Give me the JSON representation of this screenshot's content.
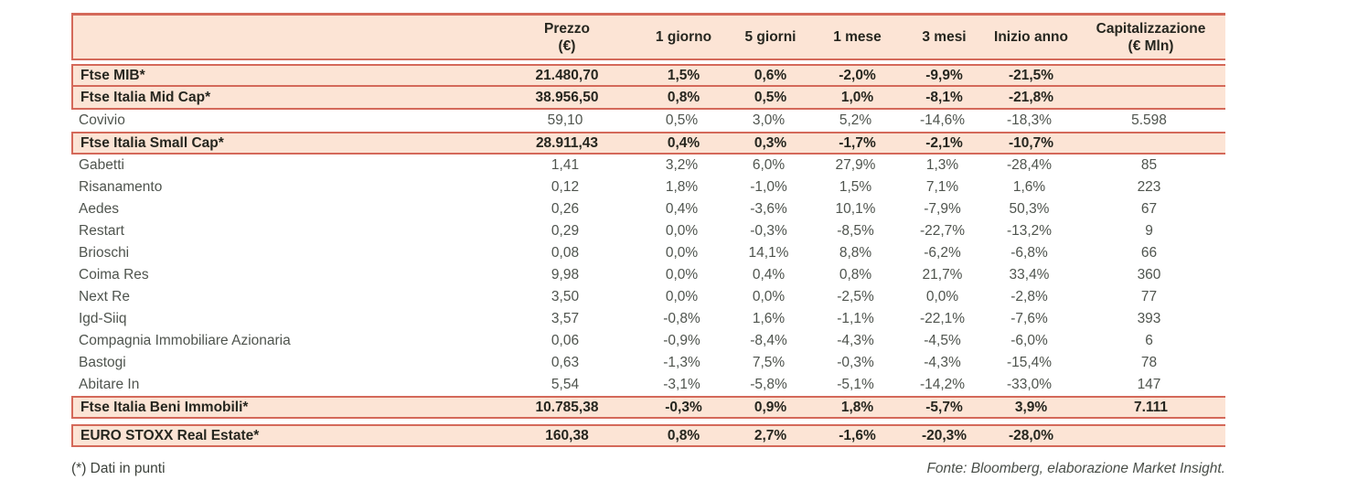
{
  "colors": {
    "accent_border": "#d4695a",
    "highlight_row_bg": "#fce4d5"
  },
  "table": {
    "columns": [
      {
        "key": "name",
        "line1": "",
        "line2": ""
      },
      {
        "key": "prezzo",
        "line1": "Prezzo",
        "line2": "(€)"
      },
      {
        "key": "1-giorno",
        "line1": "1 giorno",
        "line2": ""
      },
      {
        "key": "5-giorni",
        "line1": "5 giorni",
        "line2": ""
      },
      {
        "key": "1-mese",
        "line1": "1 mese",
        "line2": ""
      },
      {
        "key": "3-mesi",
        "line1": "3 mesi",
        "line2": ""
      },
      {
        "key": "inizio-anno",
        "line1": "Inizio anno",
        "line2": ""
      },
      {
        "key": "capitalizzazione",
        "line1": "Capitalizzazione",
        "line2": "(€ Mln)"
      }
    ],
    "rows": [
      {
        "name": "Ftse MIB*",
        "highlight": true,
        "gap_after": false,
        "values": [
          "21.480,70",
          "1,5%",
          "0,6%",
          "-2,0%",
          "-9,9%",
          "-21,5%",
          ""
        ]
      },
      {
        "name": "Ftse Italia Mid Cap*",
        "highlight": true,
        "gap_after": false,
        "values": [
          "38.956,50",
          "0,8%",
          "0,5%",
          "1,0%",
          "-8,1%",
          "-21,8%",
          ""
        ]
      },
      {
        "name": "Covivio",
        "highlight": false,
        "gap_after": false,
        "values": [
          "59,10",
          "0,5%",
          "3,0%",
          "5,2%",
          "-14,6%",
          "-18,3%",
          "5.598"
        ]
      },
      {
        "name": "Ftse Italia Small Cap*",
        "highlight": true,
        "gap_after": false,
        "values": [
          "28.911,43",
          "0,4%",
          "0,3%",
          "-1,7%",
          "-2,1%",
          "-10,7%",
          ""
        ]
      },
      {
        "name": "Gabetti",
        "highlight": false,
        "gap_after": false,
        "values": [
          "1,41",
          "3,2%",
          "6,0%",
          "27,9%",
          "1,3%",
          "-28,4%",
          "85"
        ]
      },
      {
        "name": "Risanamento",
        "highlight": false,
        "gap_after": false,
        "values": [
          "0,12",
          "1,8%",
          "-1,0%",
          "1,5%",
          "7,1%",
          "1,6%",
          "223"
        ]
      },
      {
        "name": "Aedes",
        "highlight": false,
        "gap_after": false,
        "values": [
          "0,26",
          "0,4%",
          "-3,6%",
          "10,1%",
          "-7,9%",
          "50,3%",
          "67"
        ]
      },
      {
        "name": "Restart",
        "highlight": false,
        "gap_after": false,
        "values": [
          "0,29",
          "0,0%",
          "-0,3%",
          "-8,5%",
          "-22,7%",
          "-13,2%",
          "9"
        ]
      },
      {
        "name": "Brioschi",
        "highlight": false,
        "gap_after": false,
        "values": [
          "0,08",
          "0,0%",
          "14,1%",
          "8,8%",
          "-6,2%",
          "-6,8%",
          "66"
        ]
      },
      {
        "name": "Coima Res",
        "highlight": false,
        "gap_after": false,
        "values": [
          "9,98",
          "0,0%",
          "0,4%",
          "0,8%",
          "21,7%",
          "33,4%",
          "360"
        ]
      },
      {
        "name": "Next Re",
        "highlight": false,
        "gap_after": false,
        "values": [
          "3,50",
          "0,0%",
          "0,0%",
          "-2,5%",
          "0,0%",
          "-2,8%",
          "77"
        ]
      },
      {
        "name": "Igd-Siiq",
        "highlight": false,
        "gap_after": false,
        "values": [
          "3,57",
          "-0,8%",
          "1,6%",
          "-1,1%",
          "-22,1%",
          "-7,6%",
          "393"
        ]
      },
      {
        "name": "Compagnia Immobiliare Azionaria",
        "highlight": false,
        "gap_after": false,
        "values": [
          "0,06",
          "-0,9%",
          "-8,4%",
          "-4,3%",
          "-4,5%",
          "-6,0%",
          "6"
        ]
      },
      {
        "name": "Bastogi",
        "highlight": false,
        "gap_after": false,
        "values": [
          "0,63",
          "-1,3%",
          "7,5%",
          "-0,3%",
          "-4,3%",
          "-15,4%",
          "78"
        ]
      },
      {
        "name": "Abitare In",
        "highlight": false,
        "gap_after": false,
        "values": [
          "5,54",
          "-3,1%",
          "-5,8%",
          "-5,1%",
          "-14,2%",
          "-33,0%",
          "147"
        ]
      },
      {
        "name": "Ftse Italia Beni Immobili*",
        "highlight": true,
        "gap_after": true,
        "values": [
          "10.785,38",
          "-0,3%",
          "0,9%",
          "1,8%",
          "-5,7%",
          "3,9%",
          "7.111"
        ]
      },
      {
        "name": "EURO STOXX Real Estate*",
        "highlight": true,
        "gap_after": false,
        "values": [
          "160,38",
          "0,8%",
          "2,7%",
          "-1,6%",
          "-20,3%",
          "-28,0%",
          ""
        ]
      }
    ]
  },
  "footer": {
    "note": "(*) Dati in punti",
    "source": "Fonte: Bloomberg, elaborazione Market Insight."
  }
}
